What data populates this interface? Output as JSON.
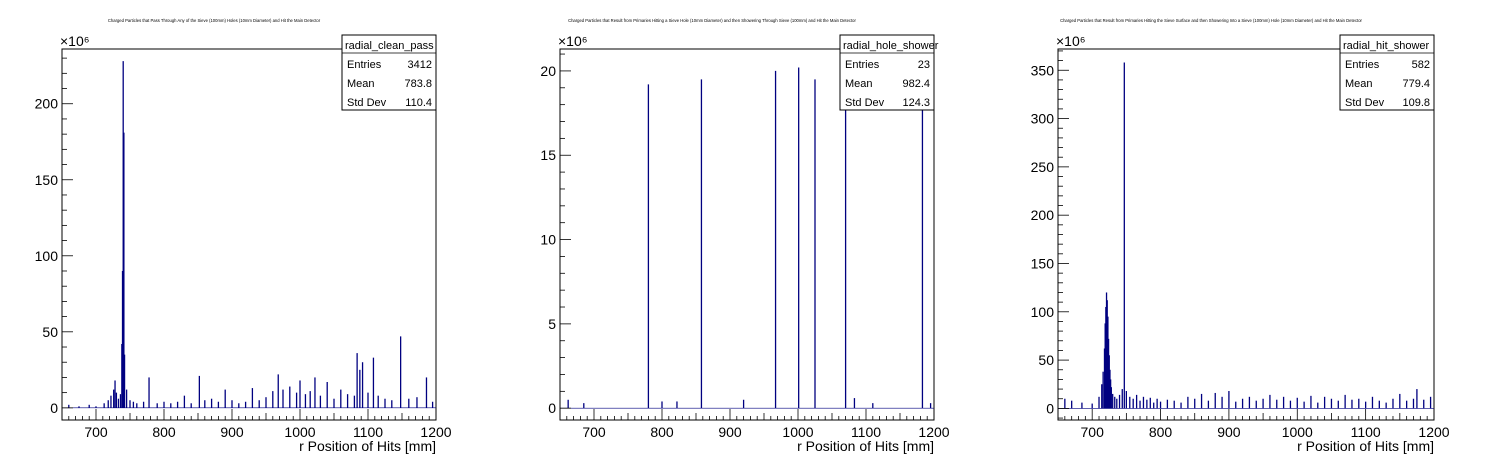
{
  "chart_data": [
    {
      "type": "bar",
      "hist_name": "radial_clean_pass",
      "title": "Charged Particles that Pass Through Any of the Sieve (100mm) Holes (10mm Diameter) and Hit the Main Detector",
      "xlabel": "r Position of Hits [mm]",
      "ylabel": "",
      "exponent": "×10⁶",
      "xlim": [
        650,
        1200
      ],
      "ylim": [
        -8,
        236
      ],
      "xticks": [
        700,
        800,
        900,
        1000,
        1100,
        1200
      ],
      "yticks": [
        0,
        50,
        100,
        150,
        200
      ],
      "stats": [
        {
          "label": "Entries",
          "value": "3412"
        },
        {
          "label": "Mean",
          "value": "783.8"
        },
        {
          "label": "Std Dev",
          "value": "110.4"
        }
      ],
      "color": "#000080",
      "bins": [
        [
          660,
          2
        ],
        [
          675,
          1
        ],
        [
          690,
          2
        ],
        [
          700,
          1
        ],
        [
          712,
          3
        ],
        [
          718,
          5
        ],
        [
          722,
          8
        ],
        [
          726,
          12
        ],
        [
          728,
          18
        ],
        [
          730,
          10
        ],
        [
          733,
          6
        ],
        [
          736,
          9
        ],
        [
          738,
          42
        ],
        [
          739,
          90
        ],
        [
          740,
          228
        ],
        [
          741,
          181
        ],
        [
          742,
          35
        ],
        [
          745,
          12
        ],
        [
          750,
          5
        ],
        [
          755,
          4
        ],
        [
          760,
          3
        ],
        [
          770,
          4
        ],
        [
          778,
          20
        ],
        [
          790,
          3
        ],
        [
          800,
          4
        ],
        [
          810,
          3
        ],
        [
          820,
          4
        ],
        [
          830,
          8
        ],
        [
          840,
          3
        ],
        [
          852,
          21
        ],
        [
          860,
          5
        ],
        [
          870,
          6
        ],
        [
          880,
          4
        ],
        [
          890,
          12
        ],
        [
          900,
          5
        ],
        [
          910,
          3
        ],
        [
          920,
          4
        ],
        [
          930,
          13
        ],
        [
          940,
          5
        ],
        [
          950,
          7
        ],
        [
          960,
          11
        ],
        [
          968,
          22
        ],
        [
          975,
          12
        ],
        [
          985,
          14
        ],
        [
          995,
          10
        ],
        [
          1000,
          18
        ],
        [
          1008,
          9
        ],
        [
          1015,
          11
        ],
        [
          1022,
          20
        ],
        [
          1030,
          8
        ],
        [
          1040,
          17
        ],
        [
          1050,
          6
        ],
        [
          1060,
          12
        ],
        [
          1070,
          9
        ],
        [
          1080,
          8
        ],
        [
          1084,
          36
        ],
        [
          1088,
          25
        ],
        [
          1092,
          30
        ],
        [
          1100,
          10
        ],
        [
          1108,
          33
        ],
        [
          1115,
          8
        ],
        [
          1125,
          6
        ],
        [
          1135,
          5
        ],
        [
          1148,
          47
        ],
        [
          1160,
          6
        ],
        [
          1172,
          7
        ],
        [
          1186,
          20
        ],
        [
          1195,
          4
        ]
      ]
    },
    {
      "type": "bar",
      "hist_name": "radial_hole_shower",
      "title": "Charged Particles that Result from Primaries Hitting a Sieve Hole (10mm Diameter) and then Showering Through Sieve (100mm) and Hit the Main Detector",
      "xlabel": "r Position of Hits [mm]",
      "ylabel": "",
      "exponent": "×10⁶",
      "xlim": [
        650,
        1200
      ],
      "ylim": [
        -0.7,
        21.3
      ],
      "xticks": [
        700,
        800,
        900,
        1000,
        1100,
        1200
      ],
      "yticks": [
        0,
        5,
        10,
        15,
        20
      ],
      "stats": [
        {
          "label": "Entries",
          "value": "23"
        },
        {
          "label": "Mean",
          "value": "982.4"
        },
        {
          "label": "Std Dev",
          "value": "124.3"
        }
      ],
      "color": "#000080",
      "bins": [
        [
          662,
          0.5
        ],
        [
          685,
          0.3
        ],
        [
          780,
          19.2
        ],
        [
          800,
          0.4
        ],
        [
          822,
          0.4
        ],
        [
          858,
          19.5
        ],
        [
          920,
          0.5
        ],
        [
          967,
          20.0
        ],
        [
          1001,
          20.2
        ],
        [
          1025,
          19.5
        ],
        [
          1070,
          20.2
        ],
        [
          1083,
          0.6
        ],
        [
          1110,
          0.3
        ],
        [
          1183,
          20.2
        ],
        [
          1195,
          0.3
        ]
      ]
    },
    {
      "type": "bar",
      "hist_name": "radial_hit_shower",
      "title": "Charged Particles that Result from Primaries Hitting the Sieve Surface and then Showering Into a Sieve (100mm) Hole (10mm Diameter) and Hit the Main Detector",
      "xlabel": "r Position of Hits [mm]",
      "ylabel": "",
      "exponent": "×10⁶",
      "xlim": [
        650,
        1200
      ],
      "ylim": [
        -12,
        372
      ],
      "xticks": [
        700,
        800,
        900,
        1000,
        1100,
        1200
      ],
      "yticks": [
        0,
        50,
        100,
        150,
        200,
        250,
        300,
        350
      ],
      "stats": [
        {
          "label": "Entries",
          "value": "582"
        },
        {
          "label": "Mean",
          "value": "779.4"
        },
        {
          "label": "Std Dev",
          "value": "109.8"
        }
      ],
      "color": "#000080",
      "bins": [
        [
          660,
          10
        ],
        [
          670,
          8
        ],
        [
          685,
          6
        ],
        [
          700,
          5
        ],
        [
          710,
          12
        ],
        [
          714,
          25
        ],
        [
          716,
          38
        ],
        [
          718,
          62
        ],
        [
          719,
          88
        ],
        [
          720,
          105
        ],
        [
          721,
          120
        ],
        [
          722,
          112
        ],
        [
          723,
          95
        ],
        [
          724,
          72
        ],
        [
          725,
          55
        ],
        [
          726,
          40
        ],
        [
          727,
          30
        ],
        [
          728,
          22
        ],
        [
          730,
          15
        ],
        [
          733,
          12
        ],
        [
          736,
          10
        ],
        [
          740,
          14
        ],
        [
          744,
          20
        ],
        [
          747,
          358
        ],
        [
          750,
          18
        ],
        [
          755,
          12
        ],
        [
          760,
          10
        ],
        [
          765,
          14
        ],
        [
          770,
          8
        ],
        [
          775,
          12
        ],
        [
          780,
          9
        ],
        [
          785,
          11
        ],
        [
          790,
          6
        ],
        [
          795,
          10
        ],
        [
          800,
          7
        ],
        [
          810,
          9
        ],
        [
          820,
          8
        ],
        [
          830,
          6
        ],
        [
          840,
          12
        ],
        [
          850,
          10
        ],
        [
          860,
          15
        ],
        [
          870,
          8
        ],
        [
          880,
          16
        ],
        [
          890,
          12
        ],
        [
          900,
          18
        ],
        [
          910,
          7
        ],
        [
          920,
          10
        ],
        [
          930,
          12
        ],
        [
          940,
          8
        ],
        [
          950,
          10
        ],
        [
          960,
          14
        ],
        [
          970,
          9
        ],
        [
          980,
          12
        ],
        [
          990,
          8
        ],
        [
          1000,
          11
        ],
        [
          1010,
          7
        ],
        [
          1020,
          13
        ],
        [
          1030,
          6
        ],
        [
          1040,
          12
        ],
        [
          1050,
          10
        ],
        [
          1060,
          8
        ],
        [
          1070,
          14
        ],
        [
          1080,
          9
        ],
        [
          1090,
          10
        ],
        [
          1100,
          7
        ],
        [
          1110,
          12
        ],
        [
          1120,
          8
        ],
        [
          1130,
          6
        ],
        [
          1140,
          10
        ],
        [
          1150,
          15
        ],
        [
          1160,
          8
        ],
        [
          1170,
          10
        ],
        [
          1175,
          20
        ],
        [
          1185,
          9
        ],
        [
          1195,
          12
        ]
      ]
    }
  ]
}
